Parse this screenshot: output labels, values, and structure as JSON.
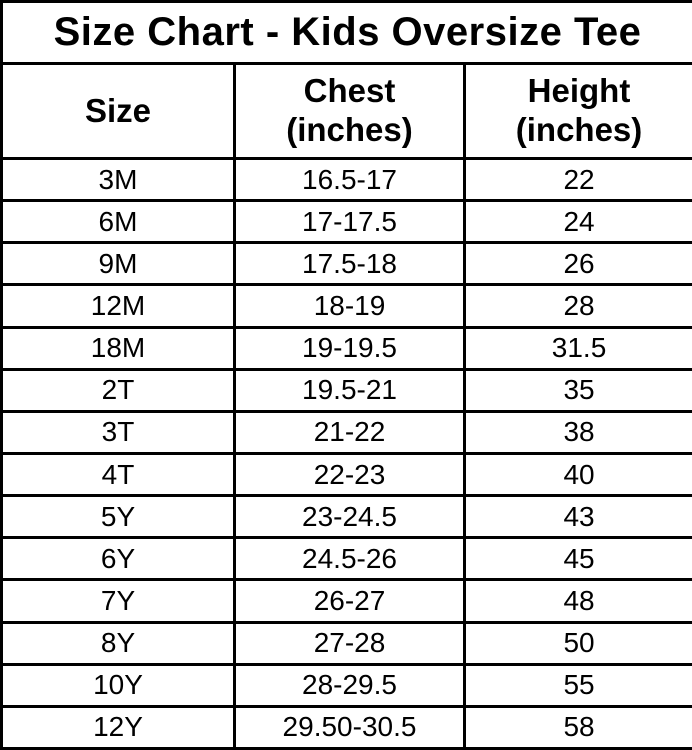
{
  "chart_data": {
    "type": "table",
    "title": "Size Chart - Kids Oversize Tee",
    "columns": [
      "Size",
      "Chest\n(inches)",
      "Height\n(inches)"
    ],
    "rows": [
      [
        "3M",
        "16.5-17",
        "22"
      ],
      [
        "6M",
        "17-17.5",
        "24"
      ],
      [
        "9M",
        "17.5-18",
        "26"
      ],
      [
        "12M",
        "18-19",
        "28"
      ],
      [
        "18M",
        "19-19.5",
        "31.5"
      ],
      [
        "2T",
        "19.5-21",
        "35"
      ],
      [
        "3T",
        "21-22",
        "38"
      ],
      [
        "4T",
        "22-23",
        "40"
      ],
      [
        "5Y",
        "23-24.5",
        "43"
      ],
      [
        "6Y",
        "24.5-26",
        "45"
      ],
      [
        "7Y",
        "26-27",
        "48"
      ],
      [
        "8Y",
        "27-28",
        "50"
      ],
      [
        "10Y",
        "28-29.5",
        "55"
      ],
      [
        "12Y",
        "29.50-30.5",
        "58"
      ]
    ],
    "layout": {
      "grid": true,
      "border_color": "#000000",
      "background_color": "#ffffff",
      "text_color": "#000000"
    }
  }
}
